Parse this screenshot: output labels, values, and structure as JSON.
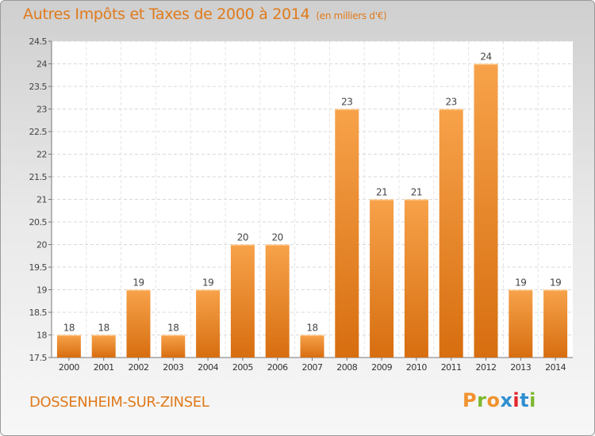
{
  "chart_data": {
    "type": "bar",
    "title": "Autres Impôts et Taxes de 2000 à 2014",
    "unit_label": "(en milliers d'€)",
    "categories": [
      "2000",
      "2001",
      "2002",
      "2003",
      "2004",
      "2005",
      "2006",
      "2007",
      "2008",
      "2009",
      "2010",
      "2011",
      "2012",
      "2013",
      "2014"
    ],
    "values": [
      18,
      18,
      19,
      18,
      19,
      20,
      20,
      18,
      23,
      21,
      21,
      23,
      24,
      19,
      19
    ],
    "data_labels": [
      "18",
      "18",
      "19",
      "18",
      "19",
      "20",
      "20",
      "18",
      "23",
      "21",
      "21",
      "23",
      "24",
      "19",
      "19"
    ],
    "ylim": [
      17.5,
      24.5
    ],
    "yticks": [
      "17.5",
      "18",
      "18.5",
      "19",
      "19.5",
      "20",
      "20.5",
      "21",
      "21.5",
      "22",
      "22.5",
      "23",
      "23.5",
      "24",
      "24.5"
    ],
    "xlabel": "",
    "ylabel": "",
    "grid": true,
    "bar_color": "#f0922e"
  },
  "footer": {
    "commune": "DOSSENHEIM-SUR-ZINSEL",
    "logo_text": "Proxiti",
    "logo_colors": [
      "#f0922e",
      "#7cb82f",
      "#f0922e",
      "#2e8fd0",
      "#e2252c",
      "#2e8fd0",
      "#7cb82f"
    ]
  }
}
